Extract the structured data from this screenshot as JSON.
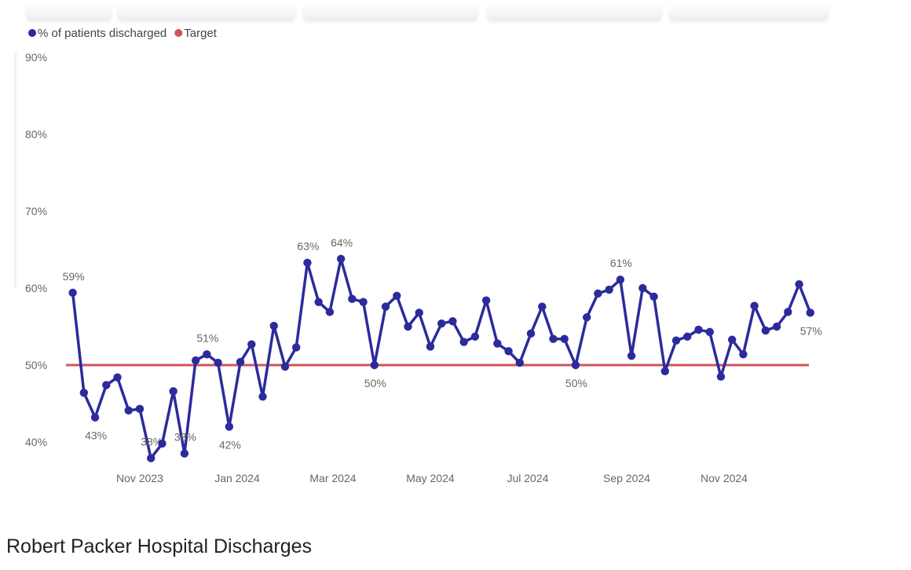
{
  "colors": {
    "series": "#2b2b9c",
    "target": "#d0555a",
    "text": "#666666"
  },
  "caption": "Robert Packer Hospital Discharges",
  "chart_data": {
    "type": "line",
    "legend": [
      {
        "name": "% of patients discharged",
        "color": "#2b2b9c"
      },
      {
        "name": "Target",
        "color": "#d0555a"
      }
    ],
    "legend_placement": "top-left",
    "y_ticks": [
      "40%",
      "50%",
      "60%",
      "70%",
      "80%",
      "90%"
    ],
    "ylim": [
      38,
      90
    ],
    "x_ticks": [
      {
        "label": "Nov 2023",
        "date": "2023-11-01"
      },
      {
        "label": "Jan 2024",
        "date": "2024-01-01"
      },
      {
        "label": "Mar 2024",
        "date": "2024-03-01"
      },
      {
        "label": "May 2024",
        "date": "2024-05-01"
      },
      {
        "label": "Jul 2024",
        "date": "2024-07-01"
      },
      {
        "label": "Sep 2024",
        "date": "2024-09-01"
      },
      {
        "label": "Nov 2024",
        "date": "2024-11-01"
      }
    ],
    "grid": false,
    "target": 50,
    "series": [
      {
        "name": "% of patients discharged",
        "points": [
          {
            "date": "2023-09-20",
            "y": 59.4,
            "label": "59%",
            "label_pos": "above"
          },
          {
            "date": "2023-09-27",
            "y": 46.4
          },
          {
            "date": "2023-10-04",
            "y": 43.2,
            "label": "43%",
            "label_pos": "below"
          },
          {
            "date": "2023-10-11",
            "y": 47.4
          },
          {
            "date": "2023-10-18",
            "y": 48.4
          },
          {
            "date": "2023-10-25",
            "y": 44.1
          },
          {
            "date": "2023-11-01",
            "y": 44.3
          },
          {
            "date": "2023-11-08",
            "y": 37.9,
            "label": "38%",
            "label_pos": "above"
          },
          {
            "date": "2023-11-15",
            "y": 39.8
          },
          {
            "date": "2023-11-22",
            "y": 46.6
          },
          {
            "date": "2023-11-29",
            "y": 38.5,
            "label": "38%",
            "label_pos": "above"
          },
          {
            "date": "2023-12-06",
            "y": 50.6
          },
          {
            "date": "2023-12-13",
            "y": 51.4,
            "label": "51%",
            "label_pos": "above"
          },
          {
            "date": "2023-12-20",
            "y": 50.3
          },
          {
            "date": "2023-12-27",
            "y": 42.0,
            "label": "42%",
            "label_pos": "below"
          },
          {
            "date": "2024-01-03",
            "y": 50.4
          },
          {
            "date": "2024-01-10",
            "y": 52.7
          },
          {
            "date": "2024-01-17",
            "y": 45.9
          },
          {
            "date": "2024-01-24",
            "y": 55.1
          },
          {
            "date": "2024-01-31",
            "y": 49.8
          },
          {
            "date": "2024-02-07",
            "y": 52.3
          },
          {
            "date": "2024-02-14",
            "y": 63.3,
            "label": "63%",
            "label_pos": "above"
          },
          {
            "date": "2024-02-21",
            "y": 58.2
          },
          {
            "date": "2024-02-28",
            "y": 56.9
          },
          {
            "date": "2024-03-06",
            "y": 63.8,
            "label": "64%",
            "label_pos": "above"
          },
          {
            "date": "2024-03-13",
            "y": 58.6
          },
          {
            "date": "2024-03-20",
            "y": 58.2
          },
          {
            "date": "2024-03-27",
            "y": 50.0,
            "label": "50%",
            "label_pos": "below"
          },
          {
            "date": "2024-04-03",
            "y": 57.6
          },
          {
            "date": "2024-04-10",
            "y": 59.0
          },
          {
            "date": "2024-04-17",
            "y": 55.0
          },
          {
            "date": "2024-04-24",
            "y": 56.8
          },
          {
            "date": "2024-05-01",
            "y": 52.4
          },
          {
            "date": "2024-05-08",
            "y": 55.4
          },
          {
            "date": "2024-05-15",
            "y": 55.7
          },
          {
            "date": "2024-05-22",
            "y": 53.0
          },
          {
            "date": "2024-05-29",
            "y": 53.7
          },
          {
            "date": "2024-06-05",
            "y": 58.4
          },
          {
            "date": "2024-06-12",
            "y": 52.8
          },
          {
            "date": "2024-06-19",
            "y": 51.8
          },
          {
            "date": "2024-06-26",
            "y": 50.3
          },
          {
            "date": "2024-07-03",
            "y": 54.1
          },
          {
            "date": "2024-07-10",
            "y": 57.6
          },
          {
            "date": "2024-07-17",
            "y": 53.4
          },
          {
            "date": "2024-07-24",
            "y": 53.4
          },
          {
            "date": "2024-07-31",
            "y": 50.0,
            "label": "50%",
            "label_pos": "below"
          },
          {
            "date": "2024-08-07",
            "y": 56.2
          },
          {
            "date": "2024-08-14",
            "y": 59.3
          },
          {
            "date": "2024-08-21",
            "y": 59.8
          },
          {
            "date": "2024-08-28",
            "y": 61.1,
            "label": "61%",
            "label_pos": "above"
          },
          {
            "date": "2024-09-04",
            "y": 51.2
          },
          {
            "date": "2024-09-11",
            "y": 60.0
          },
          {
            "date": "2024-09-18",
            "y": 58.9
          },
          {
            "date": "2024-09-25",
            "y": 49.2
          },
          {
            "date": "2024-10-02",
            "y": 53.2
          },
          {
            "date": "2024-10-09",
            "y": 53.7
          },
          {
            "date": "2024-10-16",
            "y": 54.6
          },
          {
            "date": "2024-10-23",
            "y": 54.3
          },
          {
            "date": "2024-10-30",
            "y": 48.5
          },
          {
            "date": "2024-11-06",
            "y": 53.3
          },
          {
            "date": "2024-11-13",
            "y": 51.4
          },
          {
            "date": "2024-11-20",
            "y": 57.7
          },
          {
            "date": "2024-11-27",
            "y": 54.5
          },
          {
            "date": "2024-12-04",
            "y": 55.0
          },
          {
            "date": "2024-12-11",
            "y": 56.9
          },
          {
            "date": "2024-12-18",
            "y": 60.5
          },
          {
            "date": "2024-12-25",
            "y": 56.8,
            "label": "57%",
            "label_pos": "below"
          }
        ]
      }
    ]
  }
}
